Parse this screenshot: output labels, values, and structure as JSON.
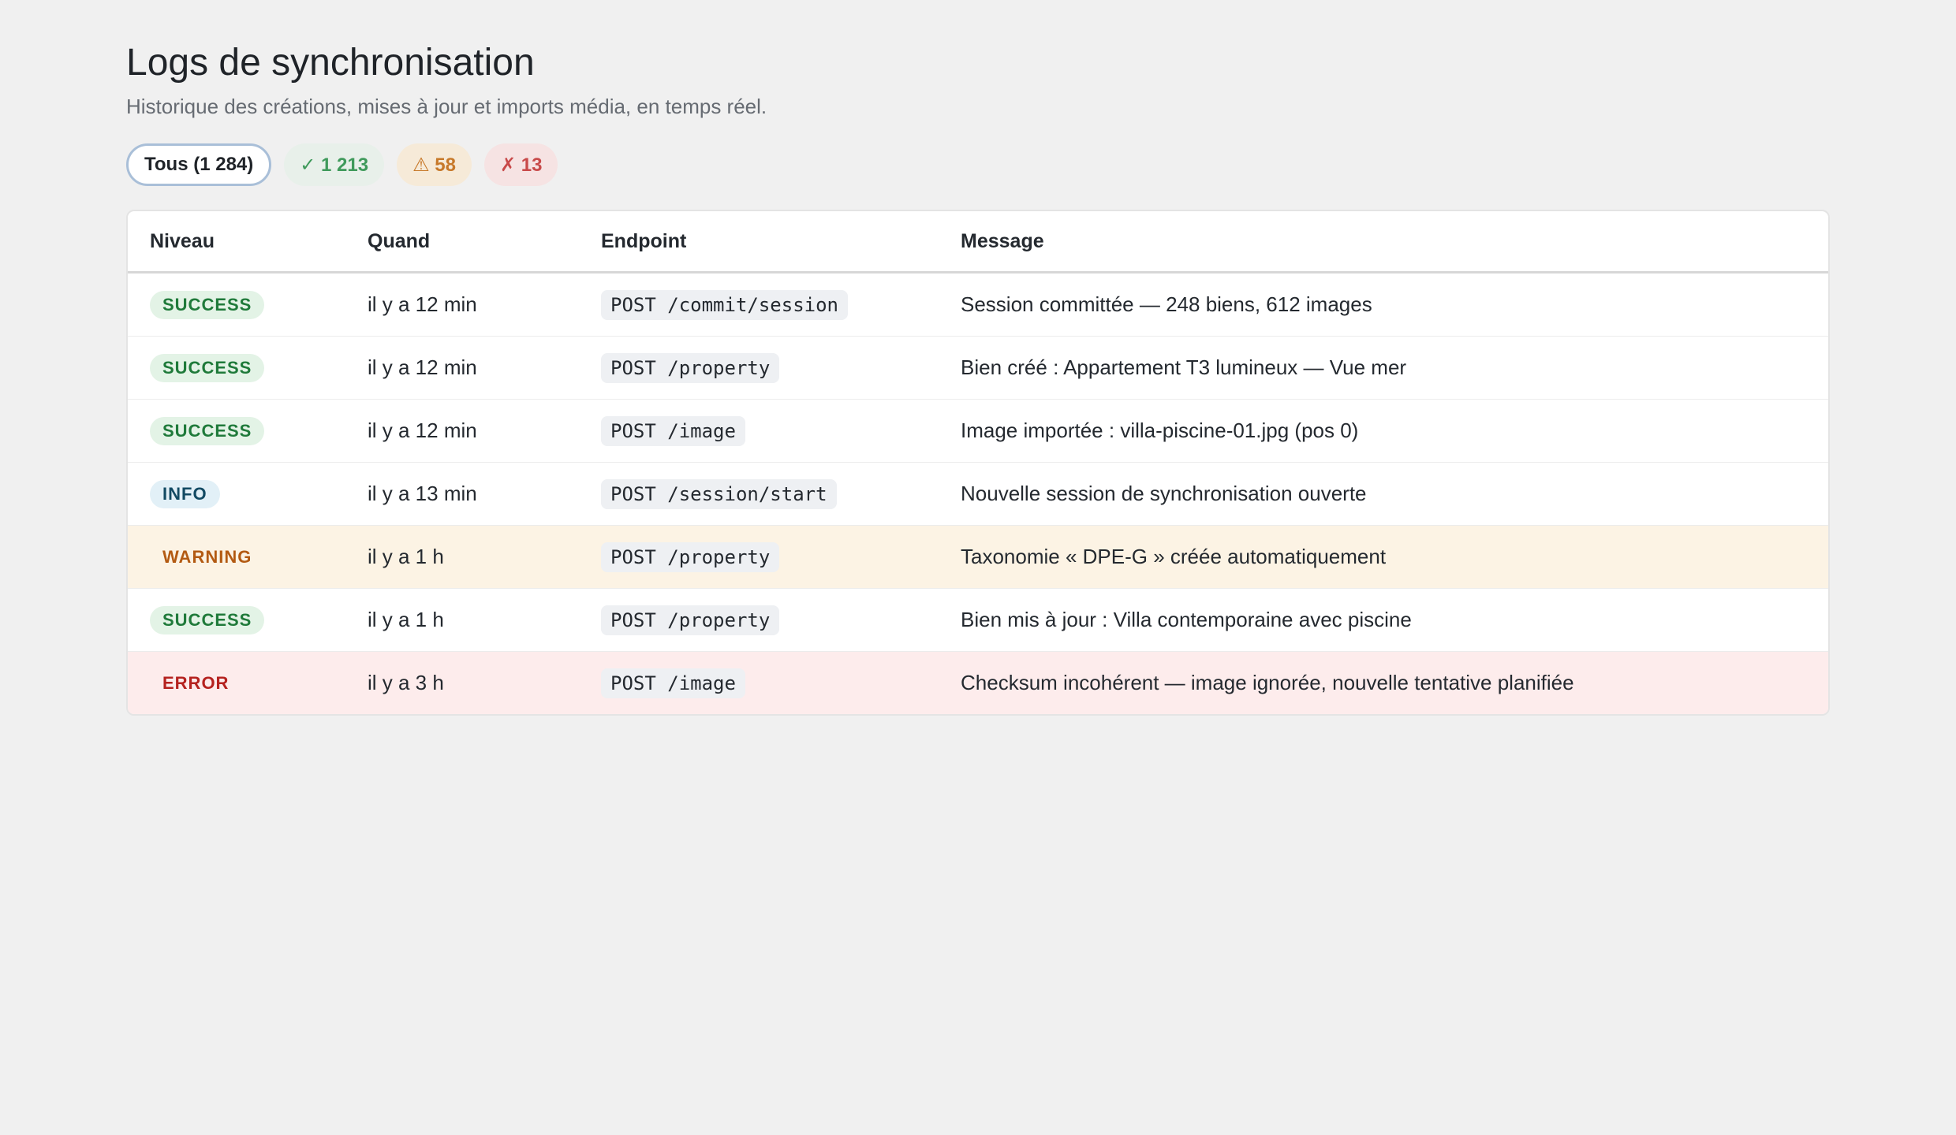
{
  "header": {
    "title": "Logs de synchronisation",
    "subtitle": "Historique des créations, mises à jour et imports média, en temps réel."
  },
  "filters": {
    "all": "Tous (1 284)",
    "success": "✓ 1 213",
    "warning": "⚠ 58",
    "error": "✗ 13"
  },
  "table": {
    "columns": [
      "Niveau",
      "Quand",
      "Endpoint",
      "Message"
    ],
    "rows": [
      {
        "level": "SUCCESS",
        "when": "il y a 12 min",
        "endpoint": "POST /commit/session",
        "message": "Session committée — 248 biens, 612 images"
      },
      {
        "level": "SUCCESS",
        "when": "il y a 12 min",
        "endpoint": "POST /property",
        "message": "Bien créé : Appartement T3 lumineux — Vue mer"
      },
      {
        "level": "SUCCESS",
        "when": "il y a 12 min",
        "endpoint": "POST /image",
        "message": "Image importée : villa-piscine-01.jpg (pos 0)"
      },
      {
        "level": "INFO",
        "when": "il y a 13 min",
        "endpoint": "POST /session/start",
        "message": "Nouvelle session de synchronisation ouverte"
      },
      {
        "level": "WARNING",
        "when": "il y a 1 h",
        "endpoint": "POST /property",
        "message": "Taxonomie « DPE-G » créée automatiquement"
      },
      {
        "level": "SUCCESS",
        "when": "il y a 1 h",
        "endpoint": "POST /property",
        "message": "Bien mis à jour : Villa contemporaine avec piscine"
      },
      {
        "level": "ERROR",
        "when": "il y a 3 h",
        "endpoint": "POST /image",
        "message": "Checksum incohérent — image ignorée, nouvelle tentative planifiée"
      }
    ]
  },
  "colors": {
    "success": "#1f7a3a",
    "info": "#124a63",
    "warning": "#b35a12",
    "error": "#b5221f"
  }
}
